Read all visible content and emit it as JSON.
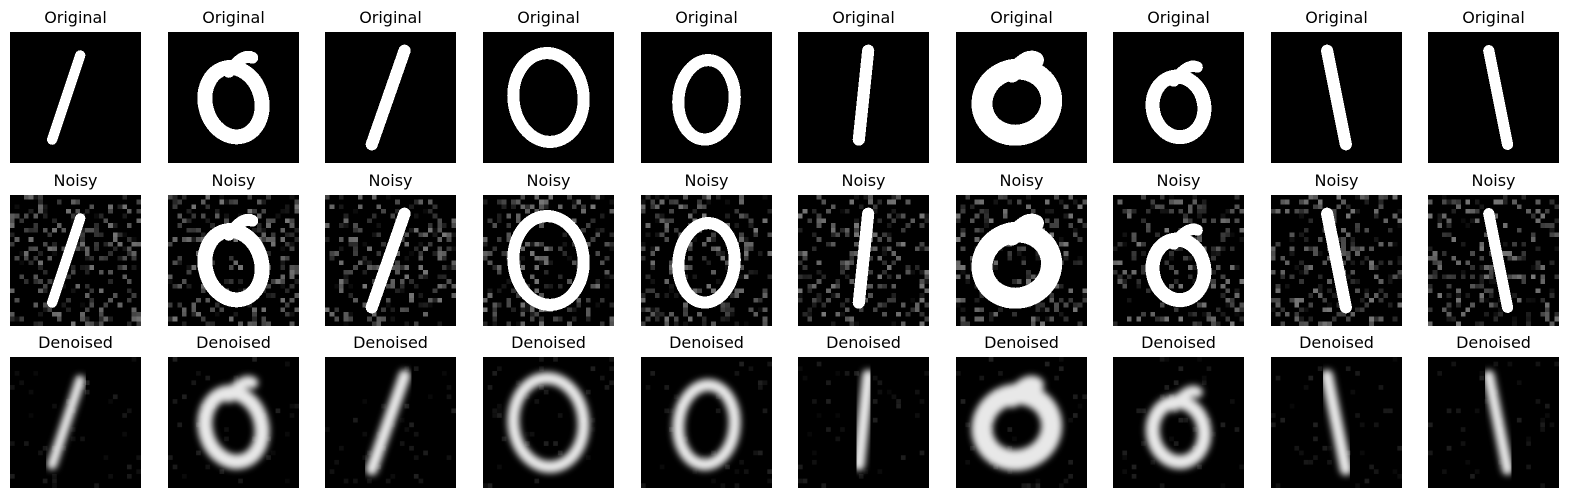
{
  "figure": {
    "rows": [
      {
        "key": "original",
        "title": "Original",
        "style": "sharp",
        "digits": [
          "1",
          "0",
          "1",
          "0",
          "0",
          "1",
          "0",
          "0",
          "1",
          "1"
        ]
      },
      {
        "key": "noisy",
        "title": "Noisy",
        "style": "noisy",
        "digits": [
          "1",
          "0",
          "1",
          "0",
          "0",
          "1",
          "0",
          "0",
          "1",
          "1"
        ]
      },
      {
        "key": "denoised",
        "title": "Denoised",
        "style": "blurred",
        "digits": [
          "1",
          "0",
          "1",
          "0",
          "0",
          "1",
          "0",
          "0",
          "1",
          "1"
        ]
      }
    ],
    "colors": {
      "background": "#ffffff",
      "image_background": "#000000",
      "stroke": "#ffffff"
    }
  }
}
